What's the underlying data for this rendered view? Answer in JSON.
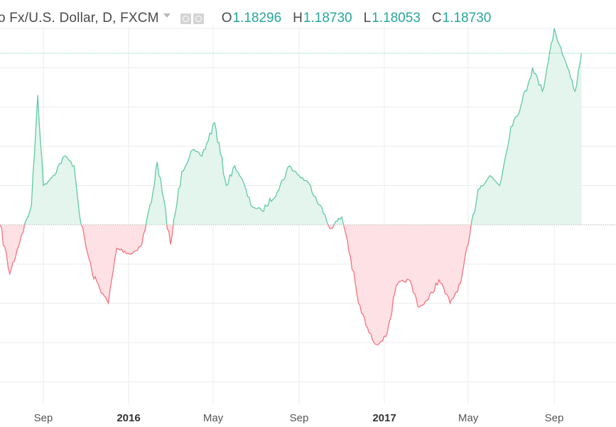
{
  "header": {
    "symbol_title": "o Fx/U.S. Dollar, D, FXCM",
    "settings_icon": "eye-icon",
    "format_icon": "gear-icon",
    "ohlc": [
      {
        "label": "O",
        "value": "1.18296"
      },
      {
        "label": "H",
        "value": "1.18730"
      },
      {
        "label": "L",
        "value": "1.18053"
      },
      {
        "label": "C",
        "value": "1.18730"
      }
    ]
  },
  "colors": {
    "up_line": "#5fc9a4",
    "up_fill": "#e3f5ec",
    "down_line": "#f4727f",
    "down_fill": "#fde1e4",
    "grid": "#ececec",
    "baseline": "#b8b8b8",
    "last_price_line": "#7fd3b8"
  },
  "chart_data": {
    "type": "area",
    "style": "baseline",
    "xlabel": "",
    "ylabel": "",
    "x_ticks": [
      "Sep",
      "2016",
      "May",
      "Sep",
      "2017",
      "May",
      "Sep"
    ],
    "x_ticks_bold": [
      "2016",
      "2017"
    ],
    "grid": true,
    "baseline_value": 1.1,
    "last_close": 1.1873,
    "ylim": [
      1.01,
      1.2
    ],
    "series": [
      {
        "x": [
          "2015-07-01",
          "2015-07-15",
          "2015-08-01",
          "2015-08-15",
          "2015-08-24",
          "2015-09-01",
          "2015-09-15",
          "2015-10-01",
          "2015-10-15",
          "2015-10-25",
          "2015-11-10",
          "2015-11-25",
          "2015-12-03",
          "2015-12-15",
          "2016-01-05",
          "2016-01-20",
          "2016-02-05",
          "2016-02-11",
          "2016-03-01",
          "2016-03-17",
          "2016-04-01",
          "2016-04-15",
          "2016-05-03",
          "2016-05-20",
          "2016-06-01",
          "2016-06-10",
          "2016-06-24",
          "2016-07-10",
          "2016-08-01",
          "2016-08-18",
          "2016-09-01",
          "2016-09-15",
          "2016-10-01",
          "2016-10-15",
          "2016-11-01",
          "2016-11-09",
          "2016-11-25",
          "2016-12-10",
          "2016-12-20",
          "2017-01-03",
          "2017-01-20",
          "2017-02-05",
          "2017-02-20",
          "2017-03-05",
          "2017-03-20",
          "2017-04-05",
          "2017-04-20",
          "2017-05-01",
          "2017-05-15",
          "2017-06-01",
          "2017-06-15",
          "2017-07-01",
          "2017-07-15",
          "2017-08-01",
          "2017-08-15",
          "2017-09-01",
          "2017-09-08",
          "2017-09-20",
          "2017-10-01",
          "2017-10-10"
        ],
        "values": [
          1.1,
          1.075,
          1.095,
          1.11,
          1.166,
          1.12,
          1.125,
          1.135,
          1.13,
          1.1,
          1.075,
          1.065,
          1.06,
          1.088,
          1.085,
          1.09,
          1.117,
          1.132,
          1.09,
          1.127,
          1.138,
          1.135,
          1.152,
          1.12,
          1.13,
          1.124,
          1.11,
          1.107,
          1.117,
          1.13,
          1.125,
          1.121,
          1.11,
          1.098,
          1.104,
          1.092,
          1.06,
          1.045,
          1.039,
          1.043,
          1.07,
          1.072,
          1.058,
          1.062,
          1.072,
          1.06,
          1.07,
          1.09,
          1.118,
          1.125,
          1.12,
          1.15,
          1.16,
          1.18,
          1.168,
          1.2,
          1.192,
          1.18,
          1.168,
          1.1873
        ]
      }
    ]
  }
}
